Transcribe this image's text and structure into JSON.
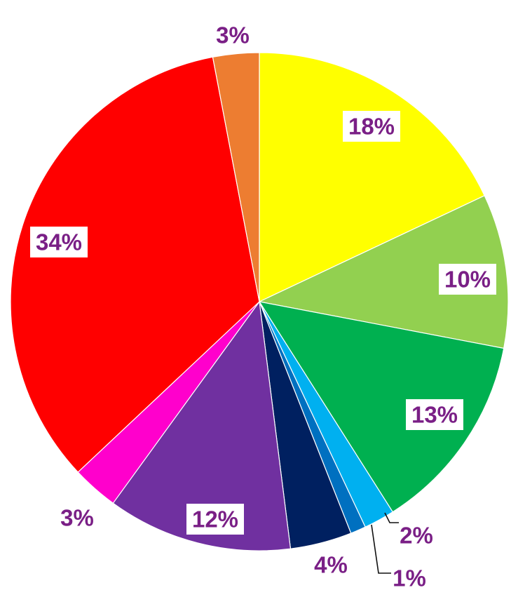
{
  "chart_data": {
    "type": "pie",
    "title": "",
    "start_angle_deg": 0,
    "direction": "clockwise",
    "label_color": "#7a1f86",
    "slices": [
      {
        "label": "18%",
        "value": 18,
        "color": "#ffff00",
        "label_box": true
      },
      {
        "label": "10%",
        "value": 10,
        "color": "#92d050",
        "label_box": true
      },
      {
        "label": "13%",
        "value": 13,
        "color": "#00b050",
        "label_box": true
      },
      {
        "label": "2%",
        "value": 2,
        "color": "#00b0f0",
        "label_box": false
      },
      {
        "label": "1%",
        "value": 1,
        "color": "#0070c0",
        "label_box": false
      },
      {
        "label": "4%",
        "value": 4,
        "color": "#002060",
        "label_box": false
      },
      {
        "label": "12%",
        "value": 12,
        "color": "#7030a0",
        "label_box": true
      },
      {
        "label": "3%",
        "value": 3,
        "color": "#ff00cc",
        "label_box": false
      },
      {
        "label": "34%",
        "value": 34,
        "color": "#ff0000",
        "label_box": true
      },
      {
        "label": "3%",
        "value": 3,
        "color": "#ed7d31",
        "label_box": false
      }
    ]
  }
}
